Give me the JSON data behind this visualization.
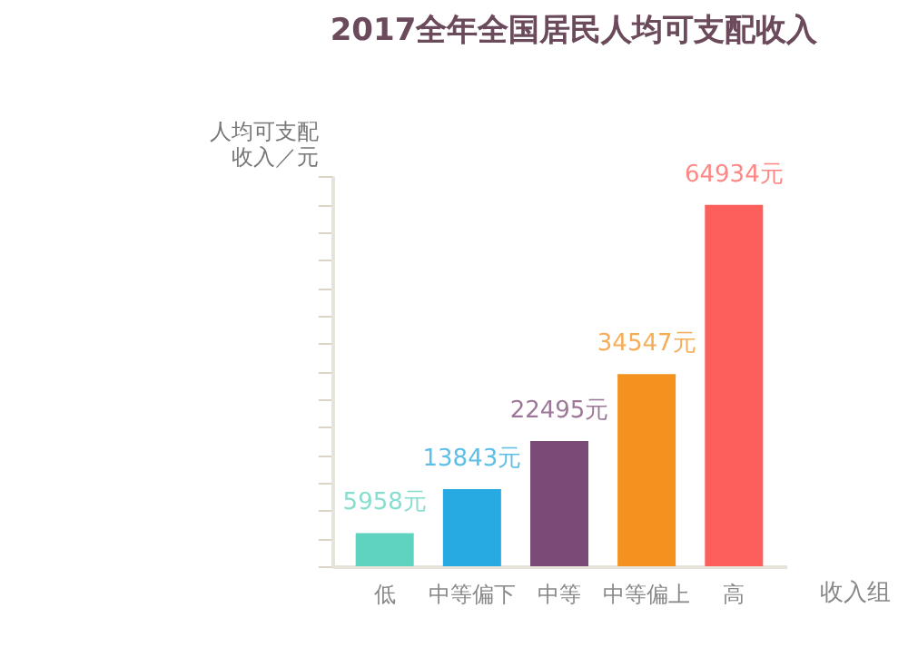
{
  "chart_data": {
    "type": "bar",
    "title": "2017全年全国居民人均可支配收入",
    "xlabel": "收入组",
    "ylabel": "人均可支配收入／元",
    "categories": [
      "低",
      "中等偏下",
      "中等",
      "中等偏上",
      "高"
    ],
    "values": [
      5958,
      13843,
      22495,
      34547,
      64934
    ],
    "colors": [
      "#5fd3c0",
      "#27a9e1",
      "#7b4a76",
      "#f3921f",
      "#fd605c"
    ],
    "value_labels": [
      "5958元",
      "13843元",
      "22495元",
      "34547元",
      "64934元"
    ],
    "grid": false,
    "legend": false
  }
}
